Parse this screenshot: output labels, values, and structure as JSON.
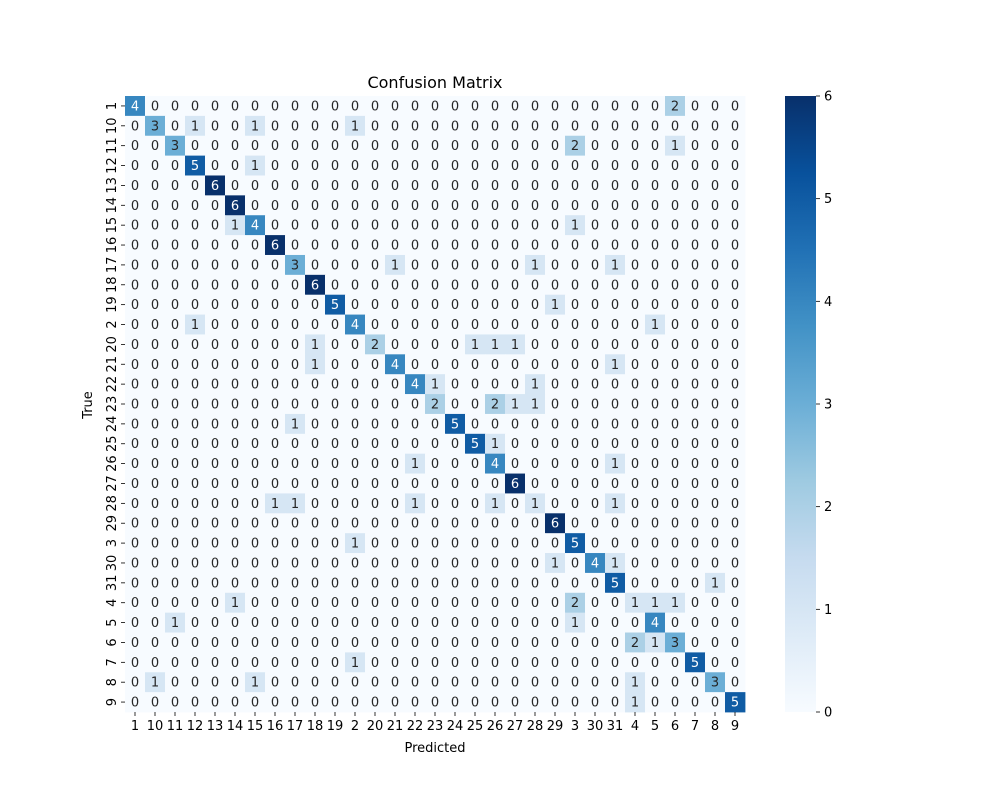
{
  "chart_data": {
    "type": "heatmap",
    "title": "Confusion Matrix",
    "xlabel": "Predicted",
    "ylabel": "True",
    "labels": [
      "1",
      "10",
      "11",
      "12",
      "13",
      "14",
      "15",
      "16",
      "17",
      "18",
      "19",
      "2",
      "20",
      "21",
      "22",
      "23",
      "24",
      "25",
      "26",
      "27",
      "28",
      "29",
      "3",
      "30",
      "31",
      "4",
      "5",
      "6",
      "7",
      "8",
      "9"
    ],
    "matrix": [
      [
        4,
        0,
        0,
        0,
        0,
        0,
        0,
        0,
        0,
        0,
        0,
        0,
        0,
        0,
        0,
        0,
        0,
        0,
        0,
        0,
        0,
        0,
        0,
        0,
        0,
        0,
        0,
        2,
        0,
        0,
        0
      ],
      [
        0,
        3,
        0,
        1,
        0,
        0,
        1,
        0,
        0,
        0,
        0,
        1,
        0,
        0,
        0,
        0,
        0,
        0,
        0,
        0,
        0,
        0,
        0,
        0,
        0,
        0,
        0,
        0,
        0,
        0,
        0
      ],
      [
        0,
        0,
        3,
        0,
        0,
        0,
        0,
        0,
        0,
        0,
        0,
        0,
        0,
        0,
        0,
        0,
        0,
        0,
        0,
        0,
        0,
        0,
        2,
        0,
        0,
        0,
        0,
        1,
        0,
        0,
        0
      ],
      [
        0,
        0,
        0,
        5,
        0,
        0,
        1,
        0,
        0,
        0,
        0,
        0,
        0,
        0,
        0,
        0,
        0,
        0,
        0,
        0,
        0,
        0,
        0,
        0,
        0,
        0,
        0,
        0,
        0,
        0,
        0
      ],
      [
        0,
        0,
        0,
        0,
        6,
        0,
        0,
        0,
        0,
        0,
        0,
        0,
        0,
        0,
        0,
        0,
        0,
        0,
        0,
        0,
        0,
        0,
        0,
        0,
        0,
        0,
        0,
        0,
        0,
        0,
        0
      ],
      [
        0,
        0,
        0,
        0,
        0,
        6,
        0,
        0,
        0,
        0,
        0,
        0,
        0,
        0,
        0,
        0,
        0,
        0,
        0,
        0,
        0,
        0,
        0,
        0,
        0,
        0,
        0,
        0,
        0,
        0,
        0
      ],
      [
        0,
        0,
        0,
        0,
        0,
        1,
        4,
        0,
        0,
        0,
        0,
        0,
        0,
        0,
        0,
        0,
        0,
        0,
        0,
        0,
        0,
        0,
        1,
        0,
        0,
        0,
        0,
        0,
        0,
        0,
        0
      ],
      [
        0,
        0,
        0,
        0,
        0,
        0,
        0,
        6,
        0,
        0,
        0,
        0,
        0,
        0,
        0,
        0,
        0,
        0,
        0,
        0,
        0,
        0,
        0,
        0,
        0,
        0,
        0,
        0,
        0,
        0,
        0
      ],
      [
        0,
        0,
        0,
        0,
        0,
        0,
        0,
        0,
        3,
        0,
        0,
        0,
        0,
        1,
        0,
        0,
        0,
        0,
        0,
        0,
        1,
        0,
        0,
        0,
        1,
        0,
        0,
        0,
        0,
        0,
        0
      ],
      [
        0,
        0,
        0,
        0,
        0,
        0,
        0,
        0,
        0,
        6,
        0,
        0,
        0,
        0,
        0,
        0,
        0,
        0,
        0,
        0,
        0,
        0,
        0,
        0,
        0,
        0,
        0,
        0,
        0,
        0,
        0
      ],
      [
        0,
        0,
        0,
        0,
        0,
        0,
        0,
        0,
        0,
        0,
        5,
        0,
        0,
        0,
        0,
        0,
        0,
        0,
        0,
        0,
        0,
        1,
        0,
        0,
        0,
        0,
        0,
        0,
        0,
        0,
        0
      ],
      [
        0,
        0,
        0,
        1,
        0,
        0,
        0,
        0,
        0,
        0,
        0,
        4,
        0,
        0,
        0,
        0,
        0,
        0,
        0,
        0,
        0,
        0,
        0,
        0,
        0,
        0,
        1,
        0,
        0,
        0,
        0
      ],
      [
        0,
        0,
        0,
        0,
        0,
        0,
        0,
        0,
        0,
        1,
        0,
        0,
        2,
        0,
        0,
        0,
        0,
        1,
        1,
        1,
        0,
        0,
        0,
        0,
        0,
        0,
        0,
        0,
        0,
        0,
        0
      ],
      [
        0,
        0,
        0,
        0,
        0,
        0,
        0,
        0,
        0,
        1,
        0,
        0,
        0,
        4,
        0,
        0,
        0,
        0,
        0,
        0,
        0,
        0,
        0,
        0,
        1,
        0,
        0,
        0,
        0,
        0,
        0
      ],
      [
        0,
        0,
        0,
        0,
        0,
        0,
        0,
        0,
        0,
        0,
        0,
        0,
        0,
        0,
        4,
        1,
        0,
        0,
        0,
        0,
        1,
        0,
        0,
        0,
        0,
        0,
        0,
        0,
        0,
        0,
        0
      ],
      [
        0,
        0,
        0,
        0,
        0,
        0,
        0,
        0,
        0,
        0,
        0,
        0,
        0,
        0,
        0,
        2,
        0,
        0,
        2,
        1,
        1,
        0,
        0,
        0,
        0,
        0,
        0,
        0,
        0,
        0,
        0
      ],
      [
        0,
        0,
        0,
        0,
        0,
        0,
        0,
        0,
        1,
        0,
        0,
        0,
        0,
        0,
        0,
        0,
        5,
        0,
        0,
        0,
        0,
        0,
        0,
        0,
        0,
        0,
        0,
        0,
        0,
        0,
        0
      ],
      [
        0,
        0,
        0,
        0,
        0,
        0,
        0,
        0,
        0,
        0,
        0,
        0,
        0,
        0,
        0,
        0,
        0,
        5,
        1,
        0,
        0,
        0,
        0,
        0,
        0,
        0,
        0,
        0,
        0,
        0,
        0
      ],
      [
        0,
        0,
        0,
        0,
        0,
        0,
        0,
        0,
        0,
        0,
        0,
        0,
        0,
        0,
        1,
        0,
        0,
        0,
        4,
        0,
        0,
        0,
        0,
        0,
        1,
        0,
        0,
        0,
        0,
        0,
        0
      ],
      [
        0,
        0,
        0,
        0,
        0,
        0,
        0,
        0,
        0,
        0,
        0,
        0,
        0,
        0,
        0,
        0,
        0,
        0,
        0,
        6,
        0,
        0,
        0,
        0,
        0,
        0,
        0,
        0,
        0,
        0,
        0
      ],
      [
        0,
        0,
        0,
        0,
        0,
        0,
        0,
        1,
        1,
        0,
        0,
        0,
        0,
        0,
        1,
        0,
        0,
        0,
        1,
        0,
        1,
        0,
        0,
        0,
        1,
        0,
        0,
        0,
        0,
        0,
        0
      ],
      [
        0,
        0,
        0,
        0,
        0,
        0,
        0,
        0,
        0,
        0,
        0,
        0,
        0,
        0,
        0,
        0,
        0,
        0,
        0,
        0,
        0,
        6,
        0,
        0,
        0,
        0,
        0,
        0,
        0,
        0,
        0
      ],
      [
        0,
        0,
        0,
        0,
        0,
        0,
        0,
        0,
        0,
        0,
        0,
        1,
        0,
        0,
        0,
        0,
        0,
        0,
        0,
        0,
        0,
        0,
        5,
        0,
        0,
        0,
        0,
        0,
        0,
        0,
        0
      ],
      [
        0,
        0,
        0,
        0,
        0,
        0,
        0,
        0,
        0,
        0,
        0,
        0,
        0,
        0,
        0,
        0,
        0,
        0,
        0,
        0,
        0,
        1,
        0,
        4,
        1,
        0,
        0,
        0,
        0,
        0,
        0
      ],
      [
        0,
        0,
        0,
        0,
        0,
        0,
        0,
        0,
        0,
        0,
        0,
        0,
        0,
        0,
        0,
        0,
        0,
        0,
        0,
        0,
        0,
        0,
        0,
        0,
        5,
        0,
        0,
        0,
        0,
        1,
        0
      ],
      [
        0,
        0,
        0,
        0,
        0,
        1,
        0,
        0,
        0,
        0,
        0,
        0,
        0,
        0,
        0,
        0,
        0,
        0,
        0,
        0,
        0,
        0,
        2,
        0,
        0,
        1,
        1,
        1,
        0,
        0,
        0
      ],
      [
        0,
        0,
        1,
        0,
        0,
        0,
        0,
        0,
        0,
        0,
        0,
        0,
        0,
        0,
        0,
        0,
        0,
        0,
        0,
        0,
        0,
        0,
        1,
        0,
        0,
        0,
        4,
        0,
        0,
        0,
        0
      ],
      [
        0,
        0,
        0,
        0,
        0,
        0,
        0,
        0,
        0,
        0,
        0,
        0,
        0,
        0,
        0,
        0,
        0,
        0,
        0,
        0,
        0,
        0,
        0,
        0,
        0,
        2,
        1,
        3,
        0,
        0,
        0
      ],
      [
        0,
        0,
        0,
        0,
        0,
        0,
        0,
        0,
        0,
        0,
        0,
        1,
        0,
        0,
        0,
        0,
        0,
        0,
        0,
        0,
        0,
        0,
        0,
        0,
        0,
        0,
        0,
        0,
        5,
        0,
        0
      ],
      [
        0,
        1,
        0,
        0,
        0,
        0,
        1,
        0,
        0,
        0,
        0,
        0,
        0,
        0,
        0,
        0,
        0,
        0,
        0,
        0,
        0,
        0,
        0,
        0,
        0,
        1,
        0,
        0,
        0,
        3,
        0
      ],
      [
        0,
        0,
        0,
        0,
        0,
        0,
        0,
        0,
        0,
        0,
        0,
        0,
        0,
        0,
        0,
        0,
        0,
        0,
        0,
        0,
        0,
        0,
        0,
        0,
        0,
        1,
        0,
        0,
        0,
        0,
        5
      ]
    ],
    "colorbar": {
      "min": 0,
      "max": 6,
      "ticks": [
        0,
        1,
        2,
        3,
        4,
        5,
        6
      ]
    },
    "colorscale": [
      "#f7fbff",
      "#deebf7",
      "#c6dbef",
      "#9ecae1",
      "#6baed6",
      "#4292c6",
      "#2171b5",
      "#08519c",
      "#08306b"
    ]
  }
}
